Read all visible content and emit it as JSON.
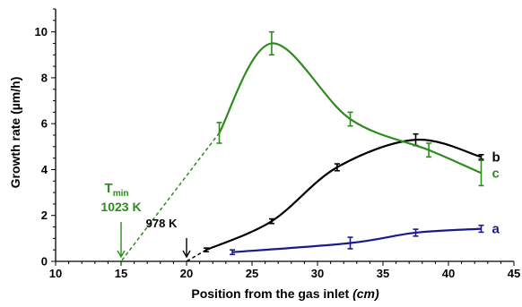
{
  "chart_data": {
    "type": "line",
    "xlabel": "Position from the gas inlet",
    "xlabel_unit": "(cm)",
    "ylabel": "Growth rate (µm/h)",
    "xlim": [
      10,
      45
    ],
    "ylim": [
      0,
      11
    ],
    "x_ticks": [
      10,
      15,
      20,
      25,
      30,
      35,
      40,
      45
    ],
    "y_ticks": [
      0,
      2,
      4,
      6,
      8,
      10
    ],
    "grid": false,
    "series": [
      {
        "name": "a",
        "color": "#1a1a8c",
        "x": [
          23.5,
          32.5,
          37.5,
          42.5
        ],
        "y": [
          0.4,
          0.8,
          1.25,
          1.42
        ],
        "err": [
          0.1,
          0.25,
          0.15,
          0.15
        ]
      },
      {
        "name": "b",
        "color": "#000000",
        "x": [
          21.5,
          26.5,
          31.5,
          37.5,
          42.5
        ],
        "y": [
          0.5,
          1.75,
          4.1,
          5.3,
          4.55
        ],
        "err": [
          0.08,
          0.1,
          0.15,
          0.25,
          0.1
        ]
      },
      {
        "name": "c",
        "color": "#2e8b1e",
        "x": [
          22.5,
          26.5,
          32.5,
          38.5,
          42.5
        ],
        "y": [
          5.6,
          9.5,
          6.2,
          4.85,
          3.85
        ],
        "err": [
          0.45,
          0.5,
          0.3,
          0.3,
          0.55
        ]
      }
    ],
    "extrapolations": [
      {
        "series": "b",
        "color": "#000000",
        "from": [
          21.5,
          0.5
        ],
        "to": [
          20,
          0
        ]
      },
      {
        "series": "c",
        "color": "#2e8b1e",
        "from": [
          22.5,
          5.6
        ],
        "to": [
          15,
          0
        ]
      }
    ],
    "annotations": [
      {
        "label": "T",
        "sub": "min",
        "second_line": "1023 K",
        "color": "#2e8b1e",
        "x": 15
      },
      {
        "label": "978 K",
        "color": "#000000",
        "x": 20
      }
    ]
  }
}
